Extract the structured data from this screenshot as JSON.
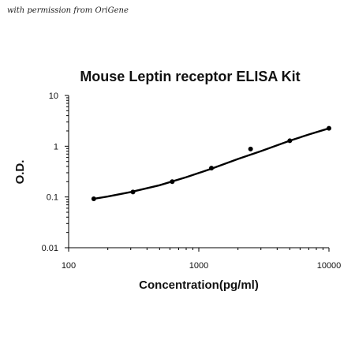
{
  "credit": "with permission from OriGene",
  "chart_data": {
    "type": "scatter",
    "title": "Mouse Leptin receptor ELISA Kit",
    "xlabel": "Concentration(pg/ml)",
    "ylabel": "O.D.",
    "xscale": "log",
    "yscale": "log",
    "xlim": [
      100,
      10000
    ],
    "ylim": [
      0.01,
      10
    ],
    "xticks": [
      "100",
      "1000",
      "10000"
    ],
    "yticks": [
      "0.01",
      "0.1",
      "1",
      "10"
    ],
    "grid": false,
    "legend": "none",
    "series": [
      {
        "x": [
          156,
          312,
          625,
          1250,
          2500,
          5000,
          10000
        ],
        "y": [
          0.092,
          0.125,
          0.2,
          0.37,
          0.88,
          1.28,
          2.25
        ]
      }
    ],
    "fit_curve": {
      "x": [
        156,
        200,
        300,
        500,
        800,
        1250,
        2000,
        3000,
        5000,
        7000,
        10000
      ],
      "y": [
        0.092,
        0.102,
        0.125,
        0.17,
        0.245,
        0.36,
        0.56,
        0.8,
        1.28,
        1.7,
        2.25
      ]
    },
    "colors": {
      "marker": "#000000",
      "line": "#000000",
      "axis": "#000000"
    }
  }
}
